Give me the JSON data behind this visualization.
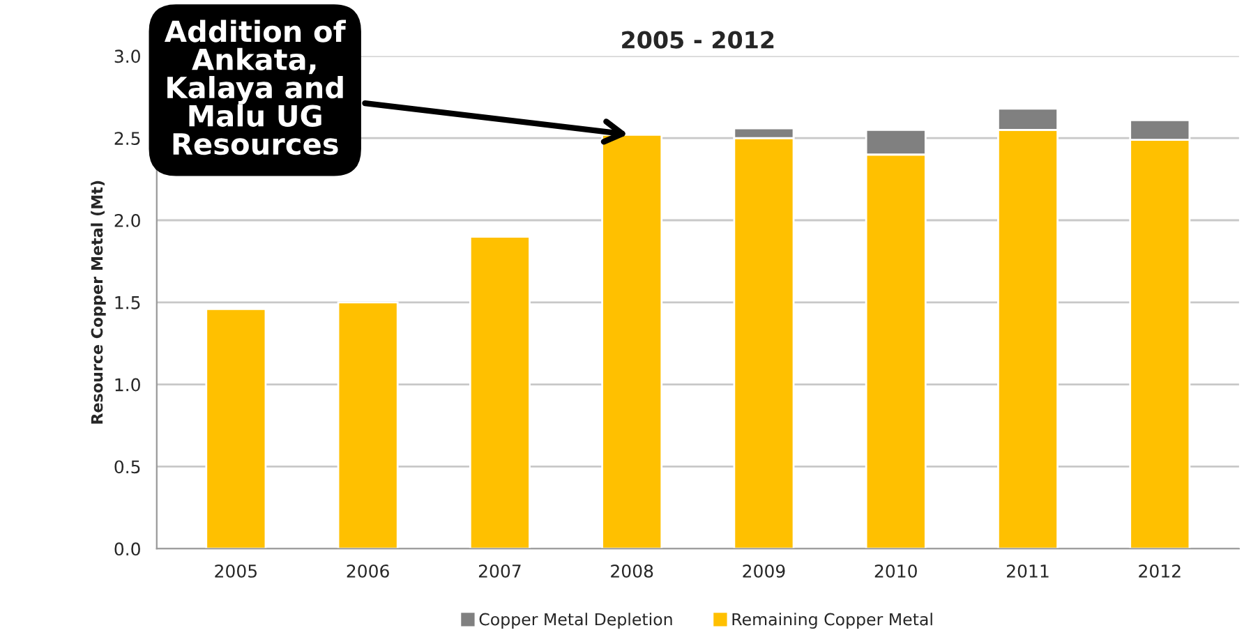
{
  "chart_data": {
    "type": "bar",
    "title": "2005 - 2012",
    "ylabel": "Resource Copper Metal (Mt)",
    "categories": [
      "2005",
      "2006",
      "2007",
      "2008",
      "2009",
      "2010",
      "2011",
      "2012"
    ],
    "stacked": true,
    "series": [
      {
        "name": "Remaining Copper Metal",
        "color": "#ffc000",
        "values": [
          1.46,
          1.5,
          1.9,
          2.52,
          2.5,
          2.4,
          2.55,
          2.49
        ]
      },
      {
        "name": "Copper Metal Depletion",
        "color": "#808080",
        "values": [
          null,
          null,
          null,
          null,
          0.06,
          0.15,
          0.13,
          0.12
        ]
      }
    ],
    "ylim": [
      0,
      3
    ],
    "yticks": [
      {
        "value": 0,
        "label": "0.0"
      },
      {
        "value": 0.5,
        "label": "0.5"
      },
      {
        "value": 1,
        "label": "1.0"
      },
      {
        "value": 1.5,
        "label": "1.5"
      },
      {
        "value": 2,
        "label": "2.0"
      },
      {
        "value": 2.5,
        "label": "2.5"
      },
      {
        "value": 3,
        "label": "3.0"
      }
    ],
    "grid": "y",
    "legend": "bottom",
    "annotations": [
      {
        "text": "Addition of\nAnkata,\nKalaya and\nMalu UG\nResources",
        "x": "2008",
        "y": 2.52
      }
    ]
  }
}
